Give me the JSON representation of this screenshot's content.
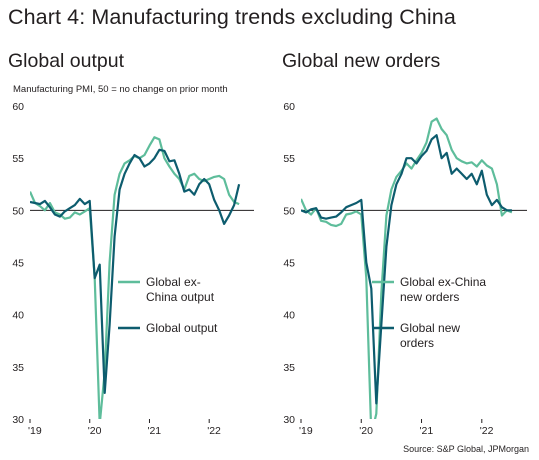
{
  "main_title": "Chart 4: Manufacturing trends excluding China",
  "source": "Source: S&P Global, JPMorgan",
  "colors": {
    "light_series": "#5ebd9b",
    "dark_series": "#0d5c6e",
    "baseline": "#231f20"
  },
  "chart_data": [
    {
      "type": "line",
      "title": "Global output",
      "ylabel": "Manufacturing PMI, 50 = no change on prior month",
      "xlabel": "",
      "ylim": [
        30,
        60
      ],
      "yticks": [
        30,
        35,
        40,
        45,
        50,
        55,
        60
      ],
      "xlim": [
        2019.0,
        2022.75
      ],
      "xticks": [
        {
          "value": 2019.0,
          "label": "'19"
        },
        {
          "value": 2020.0,
          "label": "'20"
        },
        {
          "value": 2021.0,
          "label": "'21"
        },
        {
          "value": 2022.0,
          "label": "'22"
        }
      ],
      "reference_line": 50,
      "legend_position": "bottom-right",
      "x": [
        2019.0,
        2019.083,
        2019.167,
        2019.25,
        2019.333,
        2019.417,
        2019.5,
        2019.583,
        2019.667,
        2019.75,
        2019.833,
        2019.917,
        2020.0,
        2020.083,
        2020.167,
        2020.25,
        2020.333,
        2020.417,
        2020.5,
        2020.583,
        2020.667,
        2020.75,
        2020.833,
        2020.917,
        2021.0,
        2021.083,
        2021.167,
        2021.25,
        2021.333,
        2021.417,
        2021.5,
        2021.583,
        2021.667,
        2021.75,
        2021.833,
        2021.917,
        2022.0,
        2022.083,
        2022.167,
        2022.25,
        2022.333,
        2022.417,
        2022.5
      ],
      "series": [
        {
          "name": "Global ex-China output",
          "color": "#5ebd9b",
          "values": [
            51.8,
            50.7,
            50.4,
            50.0,
            50.7,
            49.8,
            49.6,
            49.2,
            49.3,
            49.8,
            49.6,
            49.9,
            50.2,
            43.5,
            29.5,
            34.5,
            45.0,
            51.5,
            53.5,
            54.5,
            54.8,
            55.2,
            55.0,
            55.3,
            56.2,
            57.0,
            56.8,
            55.0,
            54.2,
            53.5,
            53.0,
            52.0,
            53.3,
            53.5,
            53.0,
            52.8,
            53.0,
            53.2,
            53.3,
            53.0,
            51.5,
            50.8,
            50.6
          ]
        },
        {
          "name": "Global output",
          "color": "#0d5c6e",
          "values": [
            50.8,
            50.7,
            50.6,
            50.9,
            50.3,
            49.6,
            49.4,
            49.9,
            50.2,
            50.5,
            51.1,
            50.6,
            50.9,
            43.5,
            44.8,
            32.5,
            39.0,
            47.5,
            52.0,
            53.5,
            54.5,
            55.3,
            55.0,
            54.2,
            54.5,
            55.0,
            55.8,
            55.7,
            54.7,
            54.8,
            53.5,
            51.8,
            52.0,
            51.5,
            52.5,
            53.0,
            52.5,
            51.0,
            50.0,
            48.7,
            49.5,
            50.5,
            52.5
          ]
        }
      ]
    },
    {
      "type": "line",
      "title": "Global new orders",
      "ylabel": "",
      "xlabel": "",
      "ylim": [
        30,
        60
      ],
      "yticks": [
        30,
        35,
        40,
        45,
        50,
        55,
        60
      ],
      "xlim": [
        2019.0,
        2022.75
      ],
      "xticks": [
        {
          "value": 2019.0,
          "label": "'19"
        },
        {
          "value": 2020.0,
          "label": "'20"
        },
        {
          "value": 2021.0,
          "label": "'21"
        },
        {
          "value": 2022.0,
          "label": "'22"
        }
      ],
      "reference_line": 50,
      "legend_position": "bottom-right",
      "x": [
        2019.0,
        2019.083,
        2019.167,
        2019.25,
        2019.333,
        2019.417,
        2019.5,
        2019.583,
        2019.667,
        2019.75,
        2019.833,
        2019.917,
        2020.0,
        2020.083,
        2020.167,
        2020.25,
        2020.333,
        2020.417,
        2020.5,
        2020.583,
        2020.667,
        2020.75,
        2020.833,
        2020.917,
        2021.0,
        2021.083,
        2021.167,
        2021.25,
        2021.333,
        2021.417,
        2021.5,
        2021.583,
        2021.667,
        2021.75,
        2021.833,
        2021.917,
        2022.0,
        2022.083,
        2022.167,
        2022.25,
        2022.333,
        2022.417,
        2022.5
      ],
      "series": [
        {
          "name": "Global ex-China new orders",
          "color": "#5ebd9b",
          "values": [
            51.1,
            50.0,
            49.6,
            50.2,
            49.0,
            48.9,
            48.6,
            48.5,
            48.7,
            49.6,
            49.7,
            49.9,
            49.6,
            43.5,
            28.5,
            30.5,
            42.0,
            49.5,
            52.0,
            53.2,
            53.8,
            54.5,
            54.0,
            54.8,
            55.5,
            56.5,
            58.5,
            58.8,
            57.8,
            57.2,
            55.8,
            55.0,
            54.7,
            54.5,
            54.6,
            54.2,
            54.8,
            54.3,
            54.0,
            52.5,
            49.5,
            50.0,
            49.8
          ]
        },
        {
          "name": "Global new orders",
          "color": "#0d5c6e",
          "values": [
            50.0,
            49.8,
            50.1,
            50.2,
            49.3,
            49.2,
            49.3,
            49.4,
            49.8,
            50.3,
            50.5,
            50.7,
            51.0,
            45.0,
            42.5,
            31.5,
            39.0,
            46.5,
            50.5,
            52.5,
            53.5,
            55.0,
            55.0,
            54.5,
            55.2,
            55.7,
            56.8,
            57.2,
            55.0,
            55.5,
            53.5,
            54.0,
            53.5,
            53.0,
            53.5,
            52.5,
            53.8,
            51.5,
            50.5,
            51.0,
            50.3,
            50.0,
            50.0
          ]
        }
      ]
    }
  ]
}
